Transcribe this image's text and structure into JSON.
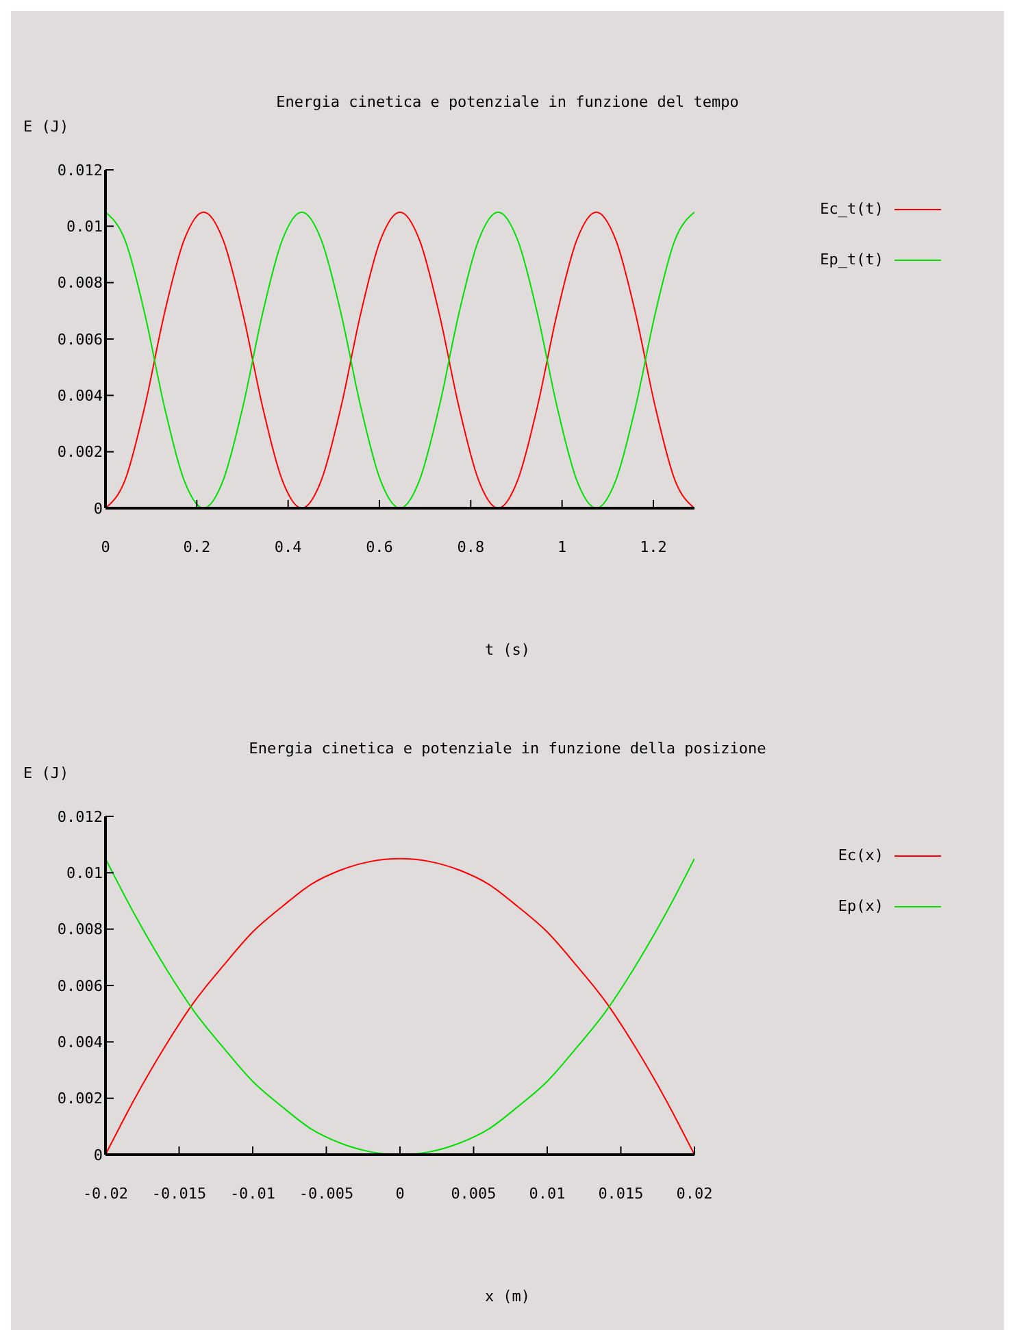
{
  "chart_data": [
    {
      "type": "line",
      "title": "Energia cinetica e potenziale in funzione del tempo",
      "xlabel": "t (s)",
      "ylabel": "E (J)",
      "xlim": [
        0,
        1.29
      ],
      "xticks": [
        0,
        0.2,
        0.4,
        0.6,
        0.8,
        1,
        1.2
      ],
      "ylim": [
        0,
        0.012
      ],
      "yticks": [
        0,
        0.002,
        0.004,
        0.006,
        0.008,
        0.01,
        0.012
      ],
      "legend": "top right",
      "marker": "none",
      "x": [
        0,
        0.043,
        0.086,
        0.129,
        0.172,
        0.215,
        0.258,
        0.301,
        0.344,
        0.387,
        0.43,
        0.473,
        0.516,
        0.559,
        0.602,
        0.645,
        0.688,
        0.731,
        0.774,
        0.817,
        0.86,
        0.903,
        0.946,
        0.989,
        1.032,
        1.075,
        1.118,
        1.161,
        1.204,
        1.247,
        1.29
      ],
      "series": [
        {
          "name": "Ec_t(t)",
          "color": "#ff0000",
          "values": [
            0,
            0.001,
            0.0036,
            0.0069,
            0.0095,
            0.0105,
            0.0095,
            0.0069,
            0.0036,
            0.001,
            0,
            0.001,
            0.0036,
            0.0069,
            0.0095,
            0.0105,
            0.0095,
            0.0069,
            0.0036,
            0.001,
            0,
            0.001,
            0.0036,
            0.0069,
            0.0095,
            0.0105,
            0.0095,
            0.0069,
            0.0036,
            0.001,
            0
          ]
        },
        {
          "name": "Ep_t(t)",
          "color": "#00e000",
          "values": [
            0.0105,
            0.0095,
            0.0069,
            0.0036,
            0.001,
            0,
            0.001,
            0.0036,
            0.0069,
            0.0095,
            0.0105,
            0.0095,
            0.0069,
            0.0036,
            0.001,
            0,
            0.001,
            0.0036,
            0.0069,
            0.0095,
            0.0105,
            0.0095,
            0.0069,
            0.0036,
            0.001,
            0,
            0.001,
            0.0036,
            0.0069,
            0.0095,
            0.0105
          ]
        }
      ]
    },
    {
      "type": "line",
      "title": "Energia cinetica e potenziale in funzione della posizione",
      "xlabel": "x (m)",
      "ylabel": "E (J)",
      "xlim": [
        -0.02,
        0.02
      ],
      "xticks": [
        -0.02,
        -0.015,
        -0.01,
        -0.005,
        0,
        0.005,
        0.01,
        0.015,
        0.02
      ],
      "ylim": [
        0,
        0.012
      ],
      "yticks": [
        0,
        0.002,
        0.004,
        0.006,
        0.008,
        0.01,
        0.012
      ],
      "legend": "top right",
      "marker": "none",
      "x": [
        -0.02,
        -0.018,
        -0.016,
        -0.014,
        -0.012,
        -0.01,
        -0.008,
        -0.006,
        -0.004,
        -0.002,
        0,
        0.002,
        0.004,
        0.006,
        0.008,
        0.01,
        0.012,
        0.014,
        0.016,
        0.018,
        0.02
      ],
      "series": [
        {
          "name": "Ec(x)",
          "color": "#ff0000",
          "values": [
            0,
            0.002,
            0.0038,
            0.0054,
            0.0067,
            0.0079,
            0.0088,
            0.0096,
            0.0101,
            0.0104,
            0.0105,
            0.0104,
            0.0101,
            0.0096,
            0.0088,
            0.0079,
            0.0067,
            0.0054,
            0.0038,
            0.002,
            0
          ]
        },
        {
          "name": "Ep(x)",
          "color": "#00e000",
          "values": [
            0.0105,
            0.0085,
            0.0067,
            0.0051,
            0.0038,
            0.0026,
            0.0017,
            0.0009,
            0.0004,
            0.0001,
            0,
            0.0001,
            0.0004,
            0.0009,
            0.0017,
            0.0026,
            0.0038,
            0.0051,
            0.0067,
            0.0085,
            0.0105
          ]
        }
      ]
    }
  ]
}
